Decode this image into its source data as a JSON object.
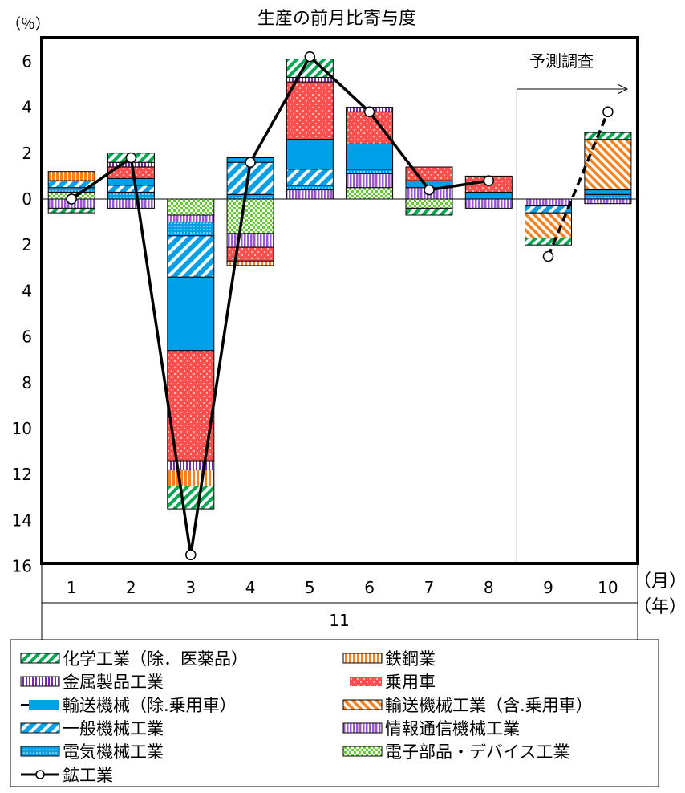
{
  "chart_data": {
    "type": "bar",
    "stacked": true,
    "title": "生産の前月比寄与度",
    "yunit": "（％）",
    "xunit_month": "（月）",
    "xunit_year": "（年）",
    "year_label": "11",
    "categories": [
      "1",
      "2",
      "3",
      "4",
      "5",
      "6",
      "7",
      "8",
      "9",
      "10"
    ],
    "ylim": [
      -16,
      7
    ],
    "ytick_values": [
      6,
      4,
      2,
      0,
      -2,
      -4,
      -6,
      -8,
      -10,
      -12,
      -14,
      -16
    ],
    "ytick_labels": [
      "6",
      "4",
      "2",
      "0",
      "2",
      "4",
      "6",
      "8",
      "10",
      "12",
      "14",
      "16"
    ],
    "forecast_label": "予測調査",
    "forecast_start_category": "9",
    "colors": {
      "chem": "#00a651",
      "steel": "#f58220",
      "metal": "#7030a0",
      "car": "#ff5050",
      "transport": "#00a0e9",
      "transport_incl": "#f58220",
      "general": "#00a0e9",
      "info": "#9b59d0",
      "electric": "#00a0e9",
      "electronics": "#66cc33",
      "line": "#000000"
    },
    "series": [
      {
        "key": "electronics",
        "name": "電子部品・デバイス工業",
        "values": [
          0.3,
          0,
          -0.7,
          -1.5,
          0,
          0.5,
          -0.4,
          0,
          0,
          0
        ]
      },
      {
        "key": "info",
        "name": "情報通信機械工業",
        "values": [
          -0.4,
          -0.4,
          -0.3,
          -0.6,
          0.4,
          0.6,
          0.5,
          -0.4,
          -0.3,
          -0.2
        ]
      },
      {
        "key": "electric",
        "name": "電気機械工業",
        "values": [
          0.2,
          0.3,
          -0.6,
          0.2,
          0.2,
          0.2,
          0,
          0,
          0,
          0.2
        ]
      },
      {
        "key": "general",
        "name": "一般機械工業",
        "values": [
          0.3,
          0.3,
          -1.8,
          1.4,
          0.7,
          0,
          0,
          0,
          -0.3,
          0
        ]
      },
      {
        "key": "transport",
        "name": "輸送機械（除.乗用車）",
        "values": [
          0,
          0.3,
          -3.2,
          0.2,
          1.3,
          1.1,
          0.3,
          0.3,
          0,
          0.2
        ]
      },
      {
        "key": "car",
        "name": "乗用車",
        "values": [
          0,
          0.5,
          -4.8,
          -0.6,
          2.5,
          1.4,
          0.6,
          0.7,
          0,
          0
        ]
      },
      {
        "key": "metal",
        "name": "金属製品工業",
        "values": [
          0,
          0.2,
          -0.4,
          0,
          0.2,
          0.2,
          0,
          0,
          0,
          0
        ]
      },
      {
        "key": "steel",
        "name": "鉄鋼業",
        "values": [
          0.4,
          0,
          -0.7,
          -0.2,
          0,
          0,
          0,
          0,
          0,
          0
        ]
      },
      {
        "key": "transport_incl",
        "name": "輸送機械工業（含.乗用車）",
        "values": [
          0,
          0,
          0,
          0,
          0,
          0,
          0,
          0,
          -1.1,
          2.2
        ]
      },
      {
        "key": "chem",
        "name": "化学工業（除．医薬品）",
        "values": [
          -0.2,
          0.4,
          -1.0,
          0,
          0.8,
          0,
          -0.3,
          0,
          -0.3,
          0.3
        ]
      }
    ],
    "mining": {
      "name": "鉱工業",
      "values": [
        0.0,
        1.8,
        -15.5,
        1.6,
        6.2,
        3.8,
        0.4,
        0.8,
        -2.5,
        3.8
      ],
      "solid_until_index": 7,
      "dashed_from_index": 8
    },
    "legend": [
      {
        "key": "chem",
        "label": "化学工業（除．医薬品）"
      },
      {
        "key": "steel",
        "label": "鉄鋼業"
      },
      {
        "key": "metal",
        "label": "金属製品工業"
      },
      {
        "key": "car",
        "label": "乗用車"
      },
      {
        "key": "transport",
        "label": "輸送機械（除.乗用車）"
      },
      {
        "key": "transport_incl",
        "label": "輸送機械工業（含.乗用車）"
      },
      {
        "key": "general",
        "label": "一般機械工業"
      },
      {
        "key": "info",
        "label": "情報通信機械工業"
      },
      {
        "key": "electric",
        "label": "電気機械工業"
      },
      {
        "key": "electronics",
        "label": "電子部品・デバイス工業"
      },
      {
        "key": "mining",
        "label": "鉱工業"
      }
    ]
  }
}
